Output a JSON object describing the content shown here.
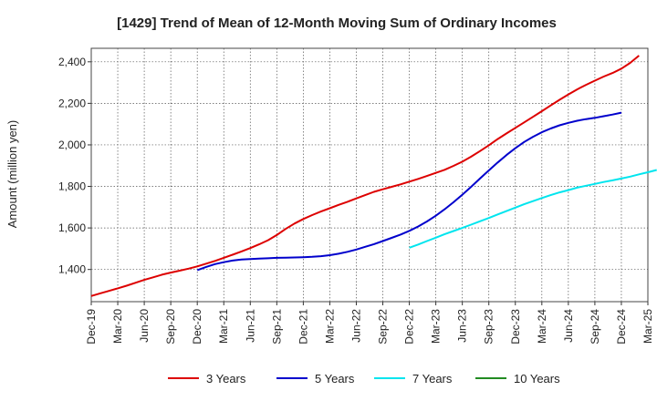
{
  "chart_data": {
    "type": "line",
    "title": "[1429]  Trend of Mean of 12-Month Moving Sum of Ordinary Incomes",
    "xlabel": "",
    "ylabel": "Amount (million yen)",
    "x_ticks": [
      "Dec-19",
      "Mar-20",
      "Jun-20",
      "Sep-20",
      "Dec-20",
      "Mar-21",
      "Jun-21",
      "Sep-21",
      "Dec-21",
      "Mar-22",
      "Jun-22",
      "Sep-22",
      "Dec-22",
      "Mar-23",
      "Jun-23",
      "Sep-23",
      "Dec-23",
      "Mar-24",
      "Jun-24",
      "Sep-24",
      "Dec-24",
      "Mar-25"
    ],
    "y_ticks": [
      1400,
      1600,
      1800,
      2000,
      2200,
      2400
    ],
    "y_tick_labels": [
      "1,400",
      "1,600",
      "1,800",
      "2,000",
      "2,200",
      "2,400"
    ],
    "ylim": [
      1245,
      2465
    ],
    "grid": true,
    "legend_position": "bottom",
    "series": [
      {
        "name": "3 Years",
        "color": "#dd0000",
        "start_index": 0,
        "values": [
          1272,
          1285,
          1297,
          1309,
          1322,
          1336,
          1350,
          1362,
          1375,
          1385,
          1394,
          1404,
          1415,
          1428,
          1441,
          1456,
          1471,
          1487,
          1503,
          1521,
          1541,
          1566,
          1595,
          1621,
          1643,
          1662,
          1679,
          1695,
          1711,
          1726,
          1742,
          1758,
          1774,
          1786,
          1798,
          1810,
          1823,
          1836,
          1850,
          1865,
          1880,
          1899,
          1919,
          1943,
          1970,
          1998,
          2028,
          2055,
          2082,
          2108,
          2135,
          2162,
          2190,
          2217,
          2243,
          2267,
          2289,
          2309,
          2329,
          2346,
          2367,
          2395,
          2430
        ]
      },
      {
        "name": "5 Years",
        "color": "#0000cc",
        "start_index": 12,
        "values": [
          1397,
          1412,
          1426,
          1435,
          1443,
          1448,
          1450,
          1452,
          1454,
          1456,
          1457,
          1458,
          1459,
          1461,
          1464,
          1469,
          1476,
          1485,
          1496,
          1509,
          1522,
          1537,
          1552,
          1568,
          1586,
          1607,
          1631,
          1659,
          1690,
          1724,
          1760,
          1798,
          1838,
          1877,
          1915,
          1951,
          1984,
          2014,
          2039,
          2061,
          2079,
          2094,
          2106,
          2116,
          2124,
          2130,
          2138,
          2146,
          2155
        ]
      },
      {
        "name": "7 Years",
        "color": "#00e5ee",
        "start_index": 36,
        "values": [
          1505,
          1520,
          1537,
          1553,
          1570,
          1585,
          1600,
          1616,
          1632,
          1648,
          1665,
          1681,
          1698,
          1714,
          1729,
          1744,
          1758,
          1771,
          1782,
          1794,
          1803,
          1812,
          1821,
          1829,
          1838,
          1847,
          1858,
          1868,
          1879
        ]
      },
      {
        "name": "10 Years",
        "color": "#228b22",
        "start_index": 0,
        "values": []
      }
    ]
  }
}
